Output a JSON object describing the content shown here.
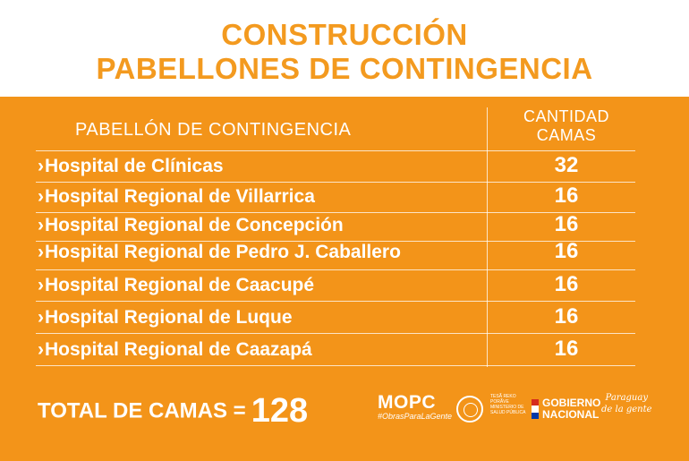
{
  "title": {
    "line1": "CONSTRUCCIÓN",
    "line2": "PABELLONES DE CONTINGENCIA"
  },
  "table": {
    "header_left": "PABELLÓN DE CONTINGENCIA",
    "header_right_line1": "CANTIDAD",
    "header_right_line2": "CAMAS",
    "chevron": "›",
    "rows": [
      {
        "name": "Hospital de Clínicas",
        "qty": "32"
      },
      {
        "name": "Hospital Regional de Villarrica",
        "qty": "16"
      },
      {
        "name": "Hospital Regional de Concepción",
        "qty": "16"
      },
      {
        "name": "Hospital Regional de Pedro J. Caballero",
        "qty": "16"
      },
      {
        "name": "Hospital Regional de Caacupé",
        "qty": "16"
      },
      {
        "name": "Hospital Regional de Luque",
        "qty": "16"
      },
      {
        "name": "Hospital Regional de Caazapá",
        "qty": "16"
      }
    ]
  },
  "total": {
    "label": "TOTAL DE CAMAS =",
    "value": "128"
  },
  "logos": {
    "mopc": "MOPC",
    "mopc_tag": "#ObrasParaLaGente",
    "ministry_text": "TESÃ REKO PORÃVE MINISTERIO DE SALUD PÚBLICA",
    "gobierno_line1": "GOBIERNO",
    "gobierno_line2": "NACIONAL",
    "slogan_line1": "Paraguay",
    "slogan_line2": "de la gente"
  },
  "colors": {
    "orange": "#f39419",
    "title_orange": "#f39a1f"
  }
}
